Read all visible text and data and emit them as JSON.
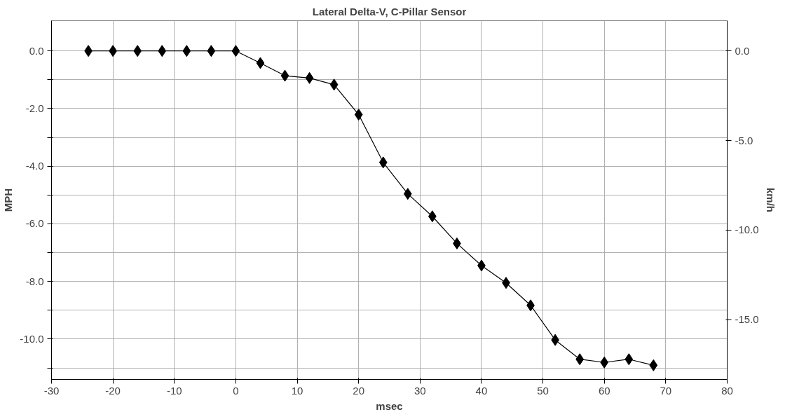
{
  "chart_data": {
    "type": "line",
    "title": "Lateral Delta-V, C-Pillar Sensor",
    "xlabel": "msec",
    "ylabel": "MPH",
    "y2label": "km/h",
    "x": [
      -24,
      -20,
      -16,
      -12,
      -8,
      -4,
      0,
      4,
      8,
      12,
      16,
      20,
      24,
      28,
      32,
      36,
      40,
      44,
      48,
      52,
      56,
      60,
      64,
      68
    ],
    "series": [
      {
        "color": "#000000",
        "values": [
          0,
          0,
          0,
          0,
          0,
          0,
          0,
          -0.42,
          -0.86,
          -0.94,
          -1.17,
          -2.21,
          -3.87,
          -4.96,
          -5.74,
          -6.68,
          -7.45,
          -8.05,
          -8.83,
          -10.03,
          -10.7,
          -10.81,
          -10.7,
          -10.91
        ]
      }
    ],
    "xlim": [
      -30,
      80
    ],
    "xticks": [
      -30,
      -20,
      -10,
      0,
      10,
      20,
      30,
      40,
      50,
      60,
      70,
      80
    ],
    "ylim": [
      -11.4,
      1.05
    ],
    "yticks": [
      {
        "value": 0,
        "label": "0.0"
      },
      {
        "value": -1,
        "label": null
      },
      {
        "value": -2,
        "label": "-2.0"
      },
      {
        "value": -3,
        "label": null
      },
      {
        "value": -4,
        "label": "-4.0"
      },
      {
        "value": -5,
        "label": null
      },
      {
        "value": -6,
        "label": "-6.0"
      },
      {
        "value": -7,
        "label": null
      },
      {
        "value": -8,
        "label": "-8.0"
      },
      {
        "value": -9,
        "label": null
      },
      {
        "value": -10,
        "label": "-10.0"
      },
      {
        "value": -11,
        "label": null
      }
    ],
    "y2lim": [
      -18.34,
      1.69
    ],
    "y2ticks": [
      {
        "value": 0,
        "label": "0.0"
      },
      {
        "value": -5,
        "label": "-5.0"
      },
      {
        "value": -10,
        "label": "-10.0"
      },
      {
        "value": -15,
        "label": "-15.0"
      }
    ],
    "grid": true,
    "marker": "diamond",
    "line_style": "solid"
  }
}
